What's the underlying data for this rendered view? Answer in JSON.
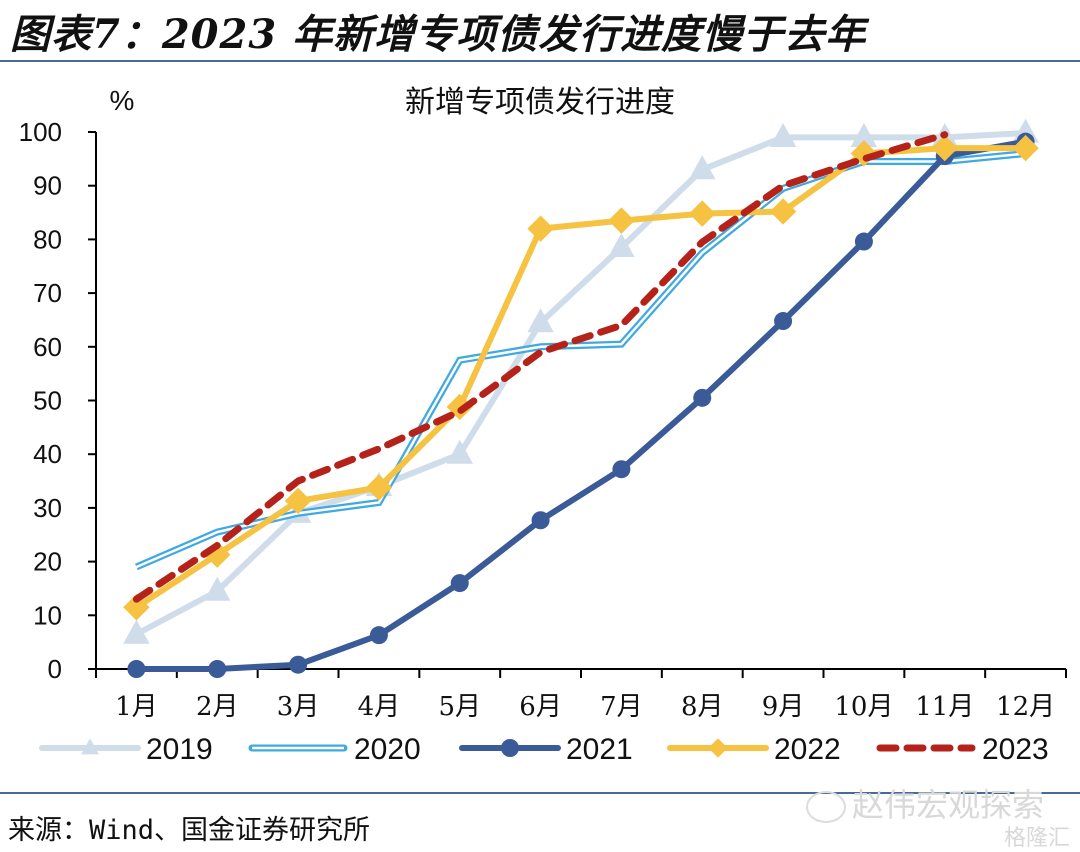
{
  "figure": {
    "title": "图表7：2023 年新增专项债发行进度慢于去年",
    "source": "来源：Wind、国金证券研究所",
    "watermark": "赵伟宏观探索",
    "watermark2": "格隆汇"
  },
  "chart_data": {
    "type": "line",
    "title": "新增专项债发行进度",
    "ylabel": "%",
    "xlabel": "",
    "ylim": [
      0,
      100
    ],
    "yticks": [
      0,
      10,
      20,
      30,
      40,
      50,
      60,
      70,
      80,
      90,
      100
    ],
    "categories": [
      "1月",
      "2月",
      "3月",
      "4月",
      "5月",
      "6月",
      "7月",
      "8月",
      "9月",
      "10月",
      "11月",
      "12月"
    ],
    "grid": false,
    "legend_position": "bottom",
    "series": [
      {
        "name": "2019",
        "color": "#cfdcea",
        "marker": "triangle",
        "style": "solid",
        "values": [
          6.5,
          14.5,
          29,
          34,
          40,
          64.5,
          78.5,
          93,
          99,
          99,
          99,
          99.8
        ]
      },
      {
        "name": "2020",
        "color": "#3fa9e0",
        "marker": "none",
        "style": "double",
        "values": [
          19,
          25.5,
          29,
          31,
          57.5,
          60,
          60.5,
          77.5,
          89.5,
          94.5,
          94.5,
          96
        ]
      },
      {
        "name": "2021",
        "color": "#3a5a98",
        "marker": "circle",
        "style": "solid",
        "values": [
          0,
          0,
          0.8,
          6.3,
          16,
          27.7,
          37.2,
          50.5,
          64.8,
          79.6,
          95.5,
          98.2
        ]
      },
      {
        "name": "2022",
        "color": "#f5c242",
        "marker": "diamond",
        "style": "solid",
        "values": [
          11.5,
          21.3,
          31.3,
          33.8,
          48.8,
          82,
          83.5,
          84.8,
          85.2,
          96,
          97,
          97
        ]
      },
      {
        "name": "2023",
        "color": "#b5221a",
        "marker": "none",
        "style": "dashed",
        "values": [
          13,
          23,
          35,
          41,
          48,
          59,
          64,
          79.5,
          90,
          95,
          99.5,
          null
        ]
      }
    ]
  }
}
